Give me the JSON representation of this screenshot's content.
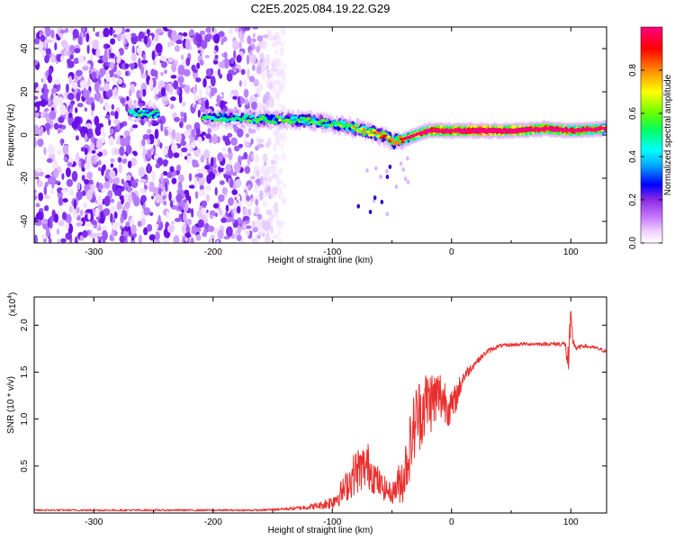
{
  "title": "C2E5.2025.084.19.22.G29",
  "colors": {
    "snr_line": "#e8302e",
    "axis": "#000000",
    "spectrogram_ramp": [
      "#ffffff",
      "#f0d6ff",
      "#c878ff",
      "#8a2be2",
      "#4b00e0",
      "#0000ff",
      "#00aaff",
      "#00ffff",
      "#00ff66",
      "#66ff00",
      "#ffff00",
      "#ff8800",
      "#ff0000",
      "#ff0080"
    ]
  },
  "chart_data": [
    {
      "type": "heatmap",
      "name": "spectrogram",
      "xlabel": "Height of straight line (km)",
      "ylabel": "Frequency (Hz)",
      "xlim": [
        -350,
        130
      ],
      "ylim": [
        -50,
        50
      ],
      "x_ticks": [
        -300,
        -200,
        -100,
        0,
        100
      ],
      "x_tick_labels": [
        "-300",
        "-200",
        "-100",
        "0",
        "100"
      ],
      "y_ticks": [
        -40,
        -20,
        0,
        20,
        40
      ],
      "y_tick_labels": [
        "-40",
        "-20",
        "0",
        "20",
        "40"
      ],
      "colorbar": {
        "label": "Normalized spectral amplitude",
        "range": [
          0,
          1
        ],
        "ticks": [
          0,
          0.2,
          0.4,
          0.6,
          0.8
        ],
        "tick_labels": [
          "0.0",
          "0.2",
          "0.4",
          "0.6",
          "0.8"
        ]
      },
      "noise_region_x": [
        -350,
        -140
      ],
      "signal_trace": {
        "x": [
          -270,
          -255,
          -205,
          -180,
          -150,
          -120,
          -100,
          -80,
          -60,
          -48,
          -40,
          -30,
          -20,
          -10,
          0,
          20,
          50,
          80,
          100,
          130
        ],
        "frequency": [
          10,
          10,
          8,
          8,
          7,
          7,
          5,
          3,
          0,
          -3,
          -2,
          0,
          2,
          2,
          2,
          2,
          2,
          3,
          2,
          3
        ],
        "amplitude": [
          0.35,
          0.3,
          0.35,
          0.35,
          0.4,
          0.4,
          0.4,
          0.5,
          0.6,
          0.6,
          0.7,
          0.8,
          0.9,
          0.9,
          0.9,
          1.0,
          0.95,
          0.9,
          0.9,
          0.8
        ]
      }
    },
    {
      "type": "line",
      "name": "snr",
      "xlabel": "Height of straight line (km)",
      "ylabel": "SNR (10 * v/v)",
      "multiplier_label": "(x10",
      "multiplier_exp": "4",
      "xlim": [
        -350,
        130
      ],
      "ylim": [
        0,
        2.3
      ],
      "x_ticks": [
        -300,
        -200,
        -100,
        0,
        100
      ],
      "x_tick_labels": [
        "-300",
        "-200",
        "-100",
        "0",
        "100"
      ],
      "y_ticks": [
        0.5,
        1.0,
        1.5,
        2.0
      ],
      "y_tick_labels": [
        "0.5",
        "1.0",
        "1.5",
        "2.0"
      ],
      "series": [
        {
          "name": "SNR",
          "x": [
            -350,
            -300,
            -250,
            -200,
            -160,
            -130,
            -110,
            -100,
            -90,
            -80,
            -70,
            -60,
            -50,
            -40,
            -35,
            -30,
            -25,
            -20,
            -15,
            -10,
            -5,
            0,
            10,
            20,
            30,
            40,
            60,
            80,
            95,
            98,
            100,
            102,
            105,
            110,
            120,
            130
          ],
          "y": [
            0.03,
            0.03,
            0.03,
            0.03,
            0.03,
            0.05,
            0.08,
            0.12,
            0.25,
            0.45,
            0.5,
            0.3,
            0.2,
            0.4,
            0.7,
            1.0,
            1.1,
            1.2,
            1.2,
            1.25,
            1.2,
            1.1,
            1.45,
            1.6,
            1.72,
            1.78,
            1.8,
            1.8,
            1.8,
            1.6,
            2.0,
            1.82,
            1.75,
            1.78,
            1.76,
            1.72
          ],
          "noise": [
            0.01,
            0.01,
            0.01,
            0.01,
            0.01,
            0.02,
            0.04,
            0.08,
            0.15,
            0.25,
            0.25,
            0.15,
            0.1,
            0.3,
            0.35,
            0.4,
            0.4,
            0.35,
            0.35,
            0.3,
            0.25,
            0.2,
            0.08,
            0.03,
            0.03,
            0.02,
            0.02,
            0.02,
            0.03,
            0.2,
            0.2,
            0.05,
            0.03,
            0.02,
            0.02,
            0.02
          ]
        }
      ]
    }
  ]
}
